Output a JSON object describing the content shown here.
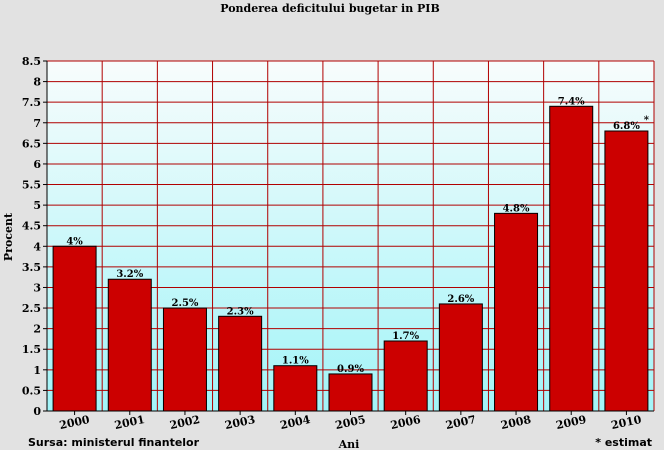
{
  "chart_data": {
    "type": "bar",
    "title": "Ponderea deficitului bugetar in PIB",
    "xlabel": "Ani",
    "ylabel": "Procent",
    "categories": [
      "2000",
      "2001",
      "2002",
      "2003",
      "2004",
      "2005",
      "2006",
      "2007",
      "2008",
      "2009",
      "2010"
    ],
    "values": [
      4,
      3.2,
      2.5,
      2.3,
      1.1,
      0.9,
      1.7,
      2.6,
      4.8,
      7.4,
      6.8
    ],
    "data_labels": [
      "4%",
      "3.2%",
      "2.5%",
      "2.3%",
      "1.1%",
      "0.9%",
      "1.7%",
      "2.6%",
      "4.8%",
      "7.4%",
      "6.8%"
    ],
    "estimate_marks": [
      "",
      "",
      "",
      "",
      "",
      "",
      "",
      "",
      "",
      "",
      "*"
    ],
    "ylim": [
      0,
      8.5
    ],
    "yticks": [
      "0",
      "0.5",
      "1",
      "1.5",
      "2",
      "2.5",
      "3",
      "3.5",
      "4",
      "4.5",
      "5",
      "5.5",
      "6",
      "6.5",
      "7",
      "7.5",
      "8",
      "8.5"
    ],
    "grid": true,
    "colors": {
      "bar": "#cc0000",
      "bar_border": "#000000",
      "grid": "#b00000",
      "plot_bg_top": "#f8fcfc",
      "plot_bg_bottom": "#a2f4f8",
      "page_bg": "#e2e2e2"
    }
  },
  "footer": {
    "source": "Sursa: ministerul finantelor",
    "estimate_note": "* estimat"
  }
}
